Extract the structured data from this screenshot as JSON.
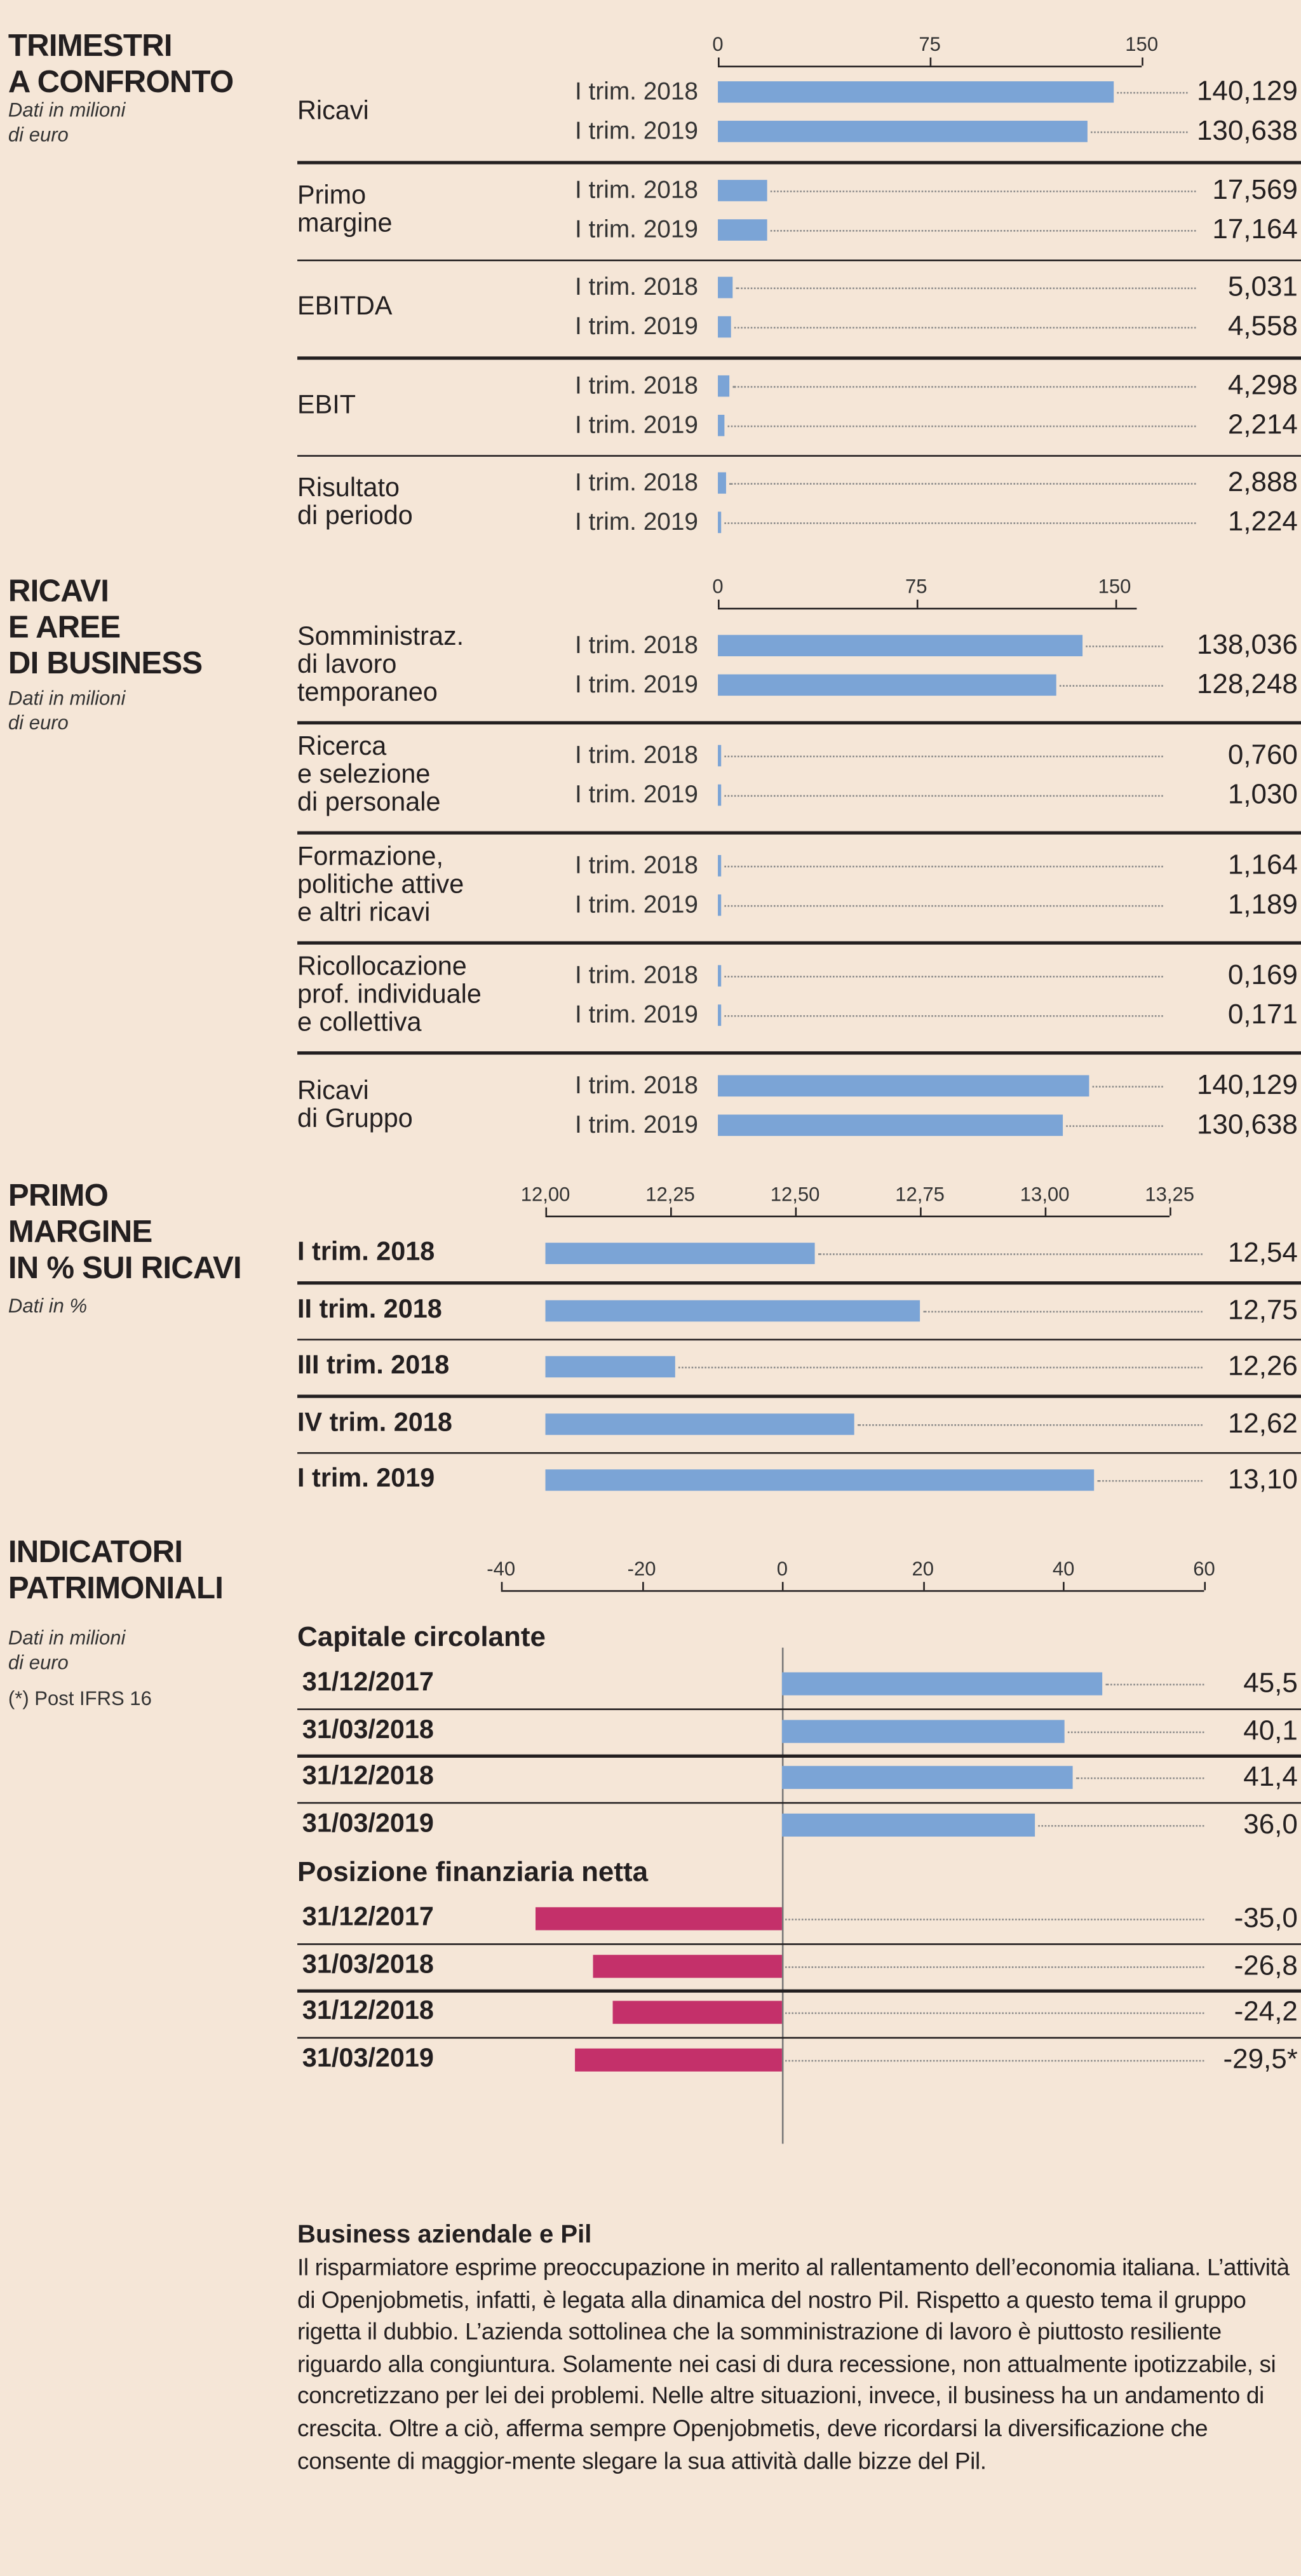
{
  "colors": {
    "background": "#f5e6d7",
    "bar_blue": "#7ba4d6",
    "bar_pink": "#c4306a"
  },
  "chart_data": [
    {
      "type": "bar",
      "orientation": "horizontal",
      "title": "TRIMESTRI\nA CONFRONTO",
      "subtitle": "Dati in milioni\ndi euro",
      "xlim": [
        0,
        150
      ],
      "ticks": [
        "0",
        "75",
        "150"
      ],
      "tick_values": [
        0,
        75,
        150
      ],
      "groups": [
        {
          "label": "Ricavi",
          "rows": [
            {
              "period": "I trim. 2018",
              "value": 140.129,
              "label": "140,129"
            },
            {
              "period": "I trim. 2019",
              "value": 130.638,
              "label": "130,638"
            }
          ]
        },
        {
          "label": "Primo\nmargine",
          "rows": [
            {
              "period": "I trim. 2018",
              "value": 17.569,
              "label": "17,569"
            },
            {
              "period": "I trim. 2019",
              "value": 17.164,
              "label": "17,164"
            }
          ]
        },
        {
          "label": "EBITDA",
          "rows": [
            {
              "period": "I trim. 2018",
              "value": 5.031,
              "label": "5,031"
            },
            {
              "period": "I trim. 2019",
              "value": 4.558,
              "label": "4,558"
            }
          ]
        },
        {
          "label": "EBIT",
          "rows": [
            {
              "period": "I trim. 2018",
              "value": 4.298,
              "label": "4,298"
            },
            {
              "period": "I trim. 2019",
              "value": 2.214,
              "label": "2,214"
            }
          ]
        },
        {
          "label": "Risultato\ndi periodo",
          "rows": [
            {
              "period": "I trim. 2018",
              "value": 2.888,
              "label": "2,888"
            },
            {
              "period": "I trim. 2019",
              "value": 1.224,
              "label": "1,224"
            }
          ]
        }
      ]
    },
    {
      "type": "bar",
      "orientation": "horizontal",
      "title": "RICAVI\nE AREE\nDI BUSINESS",
      "subtitle": "Dati in milioni\ndi euro",
      "xlim": [
        0,
        158
      ],
      "ticks": [
        "0",
        "75",
        "150"
      ],
      "tick_values": [
        0,
        75,
        150
      ],
      "groups": [
        {
          "label": "Somministraz.\ndi lavoro\ntemporaneo",
          "rows": [
            {
              "period": "I trim. 2018",
              "value": 138.036,
              "label": "138,036"
            },
            {
              "period": "I trim. 2019",
              "value": 128.248,
              "label": "128,248"
            }
          ]
        },
        {
          "label": "Ricerca\ne selezione\ndi personale",
          "rows": [
            {
              "period": "I trim. 2018",
              "value": 0.76,
              "label": "0,760"
            },
            {
              "period": "I trim. 2019",
              "value": 1.03,
              "label": "1,030"
            }
          ]
        },
        {
          "label": "Formazione,\npolitiche attive\ne altri ricavi",
          "rows": [
            {
              "period": "I trim. 2018",
              "value": 1.164,
              "label": "1,164"
            },
            {
              "period": "I trim. 2019",
              "value": 1.189,
              "label": "1,189"
            }
          ]
        },
        {
          "label": "Ricollocazione\nprof. individuale\ne collettiva",
          "rows": [
            {
              "period": "I trim. 2018",
              "value": 0.169,
              "label": "0,169"
            },
            {
              "period": "I trim. 2019",
              "value": 0.171,
              "label": "0,171"
            }
          ]
        },
        {
          "label": "Ricavi\ndi Gruppo",
          "rows": [
            {
              "period": "I trim. 2018",
              "value": 140.129,
              "label": "140,129"
            },
            {
              "period": "I trim. 2019",
              "value": 130.638,
              "label": "130,638"
            }
          ]
        }
      ]
    },
    {
      "type": "bar",
      "orientation": "horizontal",
      "title": "PRIMO\nMARGINE\nIN % SUI RICAVI",
      "subtitle": "Dati in %",
      "xlim": [
        12.0,
        13.25
      ],
      "ticks": [
        "12,00",
        "12,25",
        "12,50",
        "12,75",
        "13,00",
        "13,25"
      ],
      "tick_values": [
        12.0,
        12.25,
        12.5,
        12.75,
        13.0,
        13.25
      ],
      "categories": [
        "I trim. 2018",
        "II trim. 2018",
        "III trim. 2018",
        "IV trim. 2018",
        "I trim. 2019"
      ],
      "values": [
        12.54,
        12.75,
        12.26,
        12.62,
        13.1
      ],
      "labels": [
        "12,54",
        "12,75",
        "12,26",
        "12,62",
        "13,10"
      ]
    },
    {
      "type": "bar",
      "orientation": "horizontal",
      "title": "INDICATORI\nPATRIMONIALI",
      "subtitle": "Dati in milioni\ndi euro",
      "note": "(*) Post IFRS 16",
      "xlim": [
        -40,
        60
      ],
      "ticks": [
        "-40",
        "-20",
        "0",
        "20",
        "40",
        "60"
      ],
      "tick_values": [
        -40,
        -20,
        0,
        20,
        40,
        60
      ],
      "series": [
        {
          "name": "Capitale circolante",
          "color": "#7ba4d6",
          "categories": [
            "31/12/2017",
            "31/03/2018",
            "31/12/2018",
            "31/03/2019"
          ],
          "values": [
            45.5,
            40.1,
            41.4,
            36.0
          ],
          "labels": [
            "45,5",
            "40,1",
            "41,4",
            "36,0"
          ]
        },
        {
          "name": "Posizione finanziaria netta",
          "color": "#c4306a",
          "categories": [
            "31/12/2017",
            "31/03/2018",
            "31/12/2018",
            "31/03/2019"
          ],
          "values": [
            -35.0,
            -26.8,
            -24.2,
            -29.5
          ],
          "labels": [
            "-35,0",
            "-26,8",
            "-24,2",
            "-29,5*"
          ]
        }
      ]
    }
  ],
  "article": {
    "title": "Business aziendale e Pil",
    "body": "Il risparmiatore esprime preoccupazione in merito al rallentamento dell’economia italiana. L’attività di Openjobmetis, infatti, è legata alla dinamica del nostro Pil. Rispetto a questo tema il gruppo rigetta il dubbio. L’azienda sottolinea che la somministrazione di lavoro è piuttosto resiliente riguardo alla congiuntura. Solamente nei casi di dura recessione, non attualmente ipotizzabile, si concretizzano per lei dei problemi. Nelle altre situazioni, invece, il business ha un andamento di crescita. Oltre a ciò, afferma sempre Openjobmetis, deve ricordarsi la diversificazione che consente di maggior-mente slegare la sua attività dalle bizze del Pil."
  }
}
